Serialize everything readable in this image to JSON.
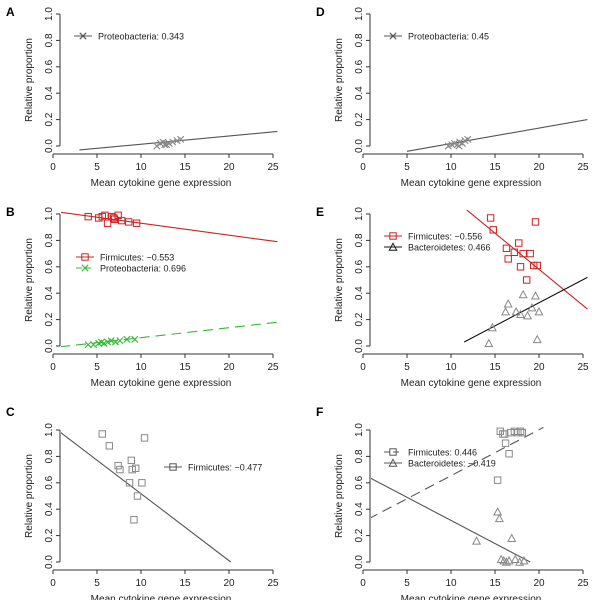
{
  "colors": {
    "axis": "#333333",
    "gray": "#888888",
    "grayLine": "#555555",
    "red": "#cc2222",
    "green": "#33bb33",
    "black": "#111111"
  },
  "chart_data": [
    {
      "panel": "A",
      "type": "scatter",
      "xlabel": "Mean cytokine gene expression",
      "ylabel": "Relative proportion",
      "xlim": [
        0,
        25
      ],
      "ylim": [
        0,
        1
      ],
      "xticks": [
        "0",
        "5",
        "10",
        "15",
        "20",
        "25"
      ],
      "yticks": [
        "0.0",
        "0.2",
        "0.4",
        "0.6",
        "0.8",
        "1.0"
      ],
      "legend_position": "top-left",
      "series": [
        {
          "name": "Proteobacteria",
          "label": "Proteobacteria: 0.343",
          "marker": "x",
          "color": "gray",
          "line_color": "grayLine",
          "dash": "",
          "fit": [
            [
              3,
              -0.03
            ],
            [
              25.5,
              0.11
            ]
          ],
          "points": [
            [
              11.8,
              0.0
            ],
            [
              12.2,
              0.02
            ],
            [
              12.5,
              0.03
            ],
            [
              12.9,
              0.01
            ],
            [
              13.2,
              0.02
            ],
            [
              13.6,
              0.03
            ],
            [
              14.1,
              0.04
            ],
            [
              14.5,
              0.05
            ],
            [
              12.7,
              0.01
            ]
          ]
        }
      ]
    },
    {
      "panel": "D",
      "type": "scatter",
      "xlabel": "Mean cytokine gene expression",
      "ylabel": "Relative proportion",
      "xlim": [
        0,
        25
      ],
      "ylim": [
        0,
        1
      ],
      "xticks": [
        "0",
        "5",
        "10",
        "15",
        "20",
        "25"
      ],
      "yticks": [
        "0.0",
        "0.2",
        "0.4",
        "0.6",
        "0.8",
        "1.0"
      ],
      "legend_position": "top-left",
      "series": [
        {
          "name": "Proteobacteria",
          "label": "Proteobacteria: 0.45",
          "marker": "x",
          "color": "gray",
          "line_color": "grayLine",
          "dash": "",
          "fit": [
            [
              5,
              -0.04
            ],
            [
              25.5,
              0.2
            ]
          ],
          "points": [
            [
              9.7,
              0.0
            ],
            [
              10.1,
              0.01
            ],
            [
              10.4,
              0.02
            ],
            [
              10.7,
              0.01
            ],
            [
              11.0,
              0.03
            ],
            [
              11.3,
              0.02
            ],
            [
              11.6,
              0.04
            ],
            [
              11.9,
              0.05
            ],
            [
              10.9,
              0.0
            ]
          ]
        }
      ]
    },
    {
      "panel": "B",
      "type": "scatter",
      "xlabel": "Mean cytokine gene expression",
      "ylabel": "Relative proportion",
      "xlim": [
        0,
        25
      ],
      "ylim": [
        0,
        1
      ],
      "xticks": [
        "0",
        "5",
        "10",
        "15",
        "20",
        "25"
      ],
      "yticks": [
        "0.0",
        "0.2",
        "0.4",
        "0.6",
        "0.8",
        "1.0"
      ],
      "legend_position": "center-left",
      "series": [
        {
          "name": "Firmicutes",
          "label": "Firmicutes: −0.553",
          "marker": "square",
          "color": "red",
          "line_color": "red",
          "dash": "",
          "fit": [
            [
              -1,
              1.03
            ],
            [
              25.5,
              0.79
            ]
          ],
          "points": [
            [
              4.0,
              0.98
            ],
            [
              5.2,
              0.97
            ],
            [
              5.6,
              0.98
            ],
            [
              5.9,
              0.99
            ],
            [
              6.2,
              0.93
            ],
            [
              6.7,
              0.98
            ],
            [
              7.0,
              0.96
            ],
            [
              7.4,
              0.99
            ],
            [
              7.8,
              0.95
            ],
            [
              8.6,
              0.94
            ],
            [
              9.5,
              0.93
            ],
            [
              6.9,
              0.97
            ]
          ]
        },
        {
          "name": "Proteobacteria",
          "label": "Proteobacteria: 0.696",
          "marker": "x",
          "color": "green",
          "line_color": "green",
          "dash": "10,6",
          "fit": [
            [
              -1,
              -0.02
            ],
            [
              25.5,
              0.18
            ]
          ],
          "points": [
            [
              4.0,
              0.01
            ],
            [
              4.6,
              0.01
            ],
            [
              5.2,
              0.02
            ],
            [
              5.5,
              0.03
            ],
            [
              5.8,
              0.02
            ],
            [
              6.2,
              0.03
            ],
            [
              6.6,
              0.04
            ],
            [
              7.1,
              0.03
            ],
            [
              7.6,
              0.04
            ],
            [
              8.4,
              0.05
            ],
            [
              9.3,
              0.05
            ]
          ]
        }
      ]
    },
    {
      "panel": "E",
      "type": "scatter",
      "xlabel": "Mean cytokine gene expression",
      "ylabel": "Relative proportion",
      "xlim": [
        0,
        25
      ],
      "ylim": [
        0,
        1
      ],
      "xticks": [
        "0",
        "5",
        "10",
        "15",
        "20",
        "25"
      ],
      "yticks": [
        "0.0",
        "0.2",
        "0.4",
        "0.6",
        "0.8",
        "1.0"
      ],
      "legend_position": "top-left",
      "series": [
        {
          "name": "Firmicutes",
          "label": "Firmicutes: −0.556",
          "marker": "square",
          "color": "red",
          "line_color": "red",
          "dash": "",
          "fit": [
            [
              11.8,
              1.03
            ],
            [
              25.5,
              0.28
            ]
          ],
          "points": [
            [
              14.5,
              0.97
            ],
            [
              14.8,
              0.88
            ],
            [
              16.3,
              0.74
            ],
            [
              16.5,
              0.66
            ],
            [
              17.2,
              0.71
            ],
            [
              17.7,
              0.78
            ],
            [
              17.9,
              0.6
            ],
            [
              18.2,
              0.7
            ],
            [
              18.6,
              0.5
            ],
            [
              19.0,
              0.7
            ],
            [
              19.4,
              0.61
            ],
            [
              19.6,
              0.94
            ],
            [
              19.8,
              0.61
            ]
          ]
        },
        {
          "name": "Bacteroidetes",
          "label": "Bacteroidetes: 0.466",
          "marker": "triangle",
          "color": "gray",
          "line_color": "black",
          "dash": "",
          "fit": [
            [
              11.5,
              0.03
            ],
            [
              25.5,
              0.52
            ]
          ],
          "points": [
            [
              14.3,
              0.02
            ],
            [
              14.7,
              0.14
            ],
            [
              16.2,
              0.26
            ],
            [
              16.5,
              0.32
            ],
            [
              17.4,
              0.26
            ],
            [
              17.9,
              0.24
            ],
            [
              18.2,
              0.39
            ],
            [
              18.7,
              0.23
            ],
            [
              19.2,
              0.29
            ],
            [
              19.6,
              0.38
            ],
            [
              19.8,
              0.05
            ],
            [
              20.0,
              0.26
            ]
          ]
        }
      ]
    },
    {
      "panel": "C",
      "type": "scatter",
      "xlabel": "Mean cytokine gene expression",
      "ylabel": "Relative proportion",
      "xlim": [
        0,
        25
      ],
      "ylim": [
        0,
        1
      ],
      "xticks": [
        "0",
        "5",
        "10",
        "15",
        "20",
        "25"
      ],
      "yticks": [
        "0.0",
        "0.2",
        "0.4",
        "0.6",
        "0.8",
        "1.0"
      ],
      "legend_position": "center-right",
      "series": [
        {
          "name": "Firmicutes",
          "label": "Firmicutes: −0.477",
          "marker": "square",
          "color": "gray",
          "line_color": "grayLine",
          "dash": "",
          "fit": [
            [
              0.3,
              1.01
            ],
            [
              20.2,
              0.0
            ]
          ],
          "points": [
            [
              5.6,
              0.97
            ],
            [
              6.4,
              0.88
            ],
            [
              7.4,
              0.73
            ],
            [
              7.6,
              0.7
            ],
            [
              8.7,
              0.6
            ],
            [
              8.9,
              0.77
            ],
            [
              9.0,
              0.7
            ],
            [
              9.4,
              0.71
            ],
            [
              9.2,
              0.32
            ],
            [
              9.6,
              0.5
            ],
            [
              10.1,
              0.6
            ],
            [
              10.4,
              0.94
            ]
          ]
        }
      ]
    },
    {
      "panel": "F",
      "type": "scatter",
      "xlabel": "Mean cytokine gene expression",
      "ylabel": "Relative proportion",
      "xlim": [
        0,
        25
      ],
      "ylim": [
        0,
        1
      ],
      "xticks": [
        "0",
        "5",
        "10",
        "15",
        "20",
        "25"
      ],
      "yticks": [
        "0.0",
        "0.2",
        "0.4",
        "0.6",
        "0.8",
        "1.0"
      ],
      "legend_position": "top-left",
      "series": [
        {
          "name": "Firmicutes",
          "label": "Firmicutes: 0.446",
          "marker": "square",
          "color": "gray",
          "line_color": "grayLine",
          "dash": "10,6",
          "fit": [
            [
              -1,
              0.27
            ],
            [
              20.5,
              1.02
            ]
          ],
          "points": [
            [
              15.3,
              0.62
            ],
            [
              15.6,
              0.99
            ],
            [
              15.9,
              0.97
            ],
            [
              16.1,
              0.97
            ],
            [
              16.2,
              0.9
            ],
            [
              16.6,
              0.82
            ],
            [
              16.8,
              0.98
            ],
            [
              17.2,
              0.99
            ],
            [
              17.6,
              0.98
            ],
            [
              17.9,
              0.99
            ],
            [
              18.1,
              0.98
            ]
          ]
        },
        {
          "name": "Bacteroidetes",
          "label": "Bacteroidetes: −0.419",
          "marker": "triangle",
          "color": "gray",
          "line_color": "grayLine",
          "dash": "",
          "fit": [
            [
              -1,
              0.7
            ],
            [
              19.0,
              0.0
            ]
          ],
          "points": [
            [
              12.9,
              0.16
            ],
            [
              15.3,
              0.38
            ],
            [
              15.5,
              0.33
            ],
            [
              15.7,
              0.02
            ],
            [
              16.0,
              0.01
            ],
            [
              16.3,
              0.0
            ],
            [
              16.6,
              0.01
            ],
            [
              16.9,
              0.18
            ],
            [
              17.3,
              0.02
            ],
            [
              17.8,
              0.0
            ],
            [
              18.3,
              0.01
            ]
          ]
        }
      ]
    }
  ]
}
